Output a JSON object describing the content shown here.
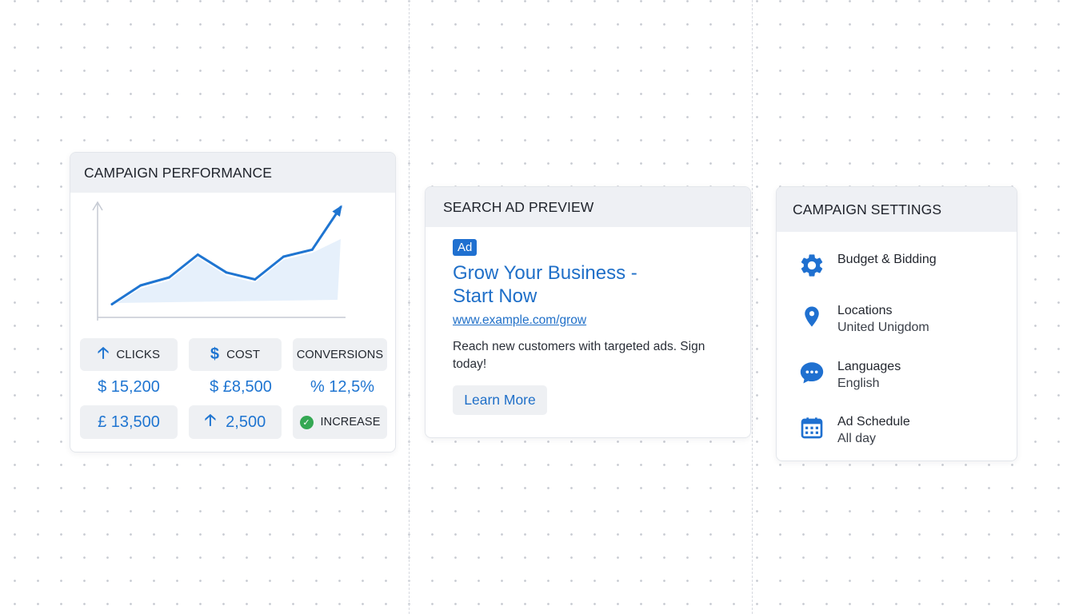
{
  "performance": {
    "title": "CAMPAIGN PERFORMANCE",
    "metrics": {
      "clicks_label": "CLICKS",
      "cost_label": "COST",
      "conversions_label": "CONVERSIONS",
      "clicks_value": "$ 15,200",
      "cost_value": "$ £8,500",
      "conversions_value": "% 12,5%",
      "row3_value_1": "£ 13,500",
      "row3_value_2": "2,500",
      "increase_label": "INCREASE"
    },
    "icons": {
      "clicks": "arrow-up-icon",
      "cost": "dollar-icon",
      "row3_value_2": "arrow-up-icon",
      "increase": "check-circle-icon"
    }
  },
  "chart_data": {
    "type": "line",
    "x": [
      0,
      1,
      2,
      3,
      4,
      5,
      6,
      7,
      8
    ],
    "values": [
      2,
      21,
      29,
      52,
      34,
      27,
      50,
      57,
      100
    ],
    "ylim": [
      0,
      100
    ],
    "xlabel": "",
    "ylabel": "",
    "grid": false,
    "area_fill": true,
    "end_arrow": true,
    "series_color": "#1f75d1"
  },
  "ad_preview": {
    "title": "SEARCH AD PREVIEW",
    "badge": "Ad",
    "headline_line1": "Grow Your Business -",
    "headline_line2": "Start Now",
    "url": "www.example.com/grow",
    "description": "Reach new customers with targeted ads. Sign today!",
    "cta": "Learn More"
  },
  "settings": {
    "title": "CAMPAIGN SETTINGS",
    "items": [
      {
        "icon": "gear-icon",
        "title": "Budget & Bidding",
        "subtitle": ""
      },
      {
        "icon": "location-pin-icon",
        "title": "Locations",
        "subtitle": "United Unigdom"
      },
      {
        "icon": "chat-bubble-icon",
        "title": "Languages",
        "subtitle": "English"
      },
      {
        "icon": "calendar-icon",
        "title": "Ad Schedule",
        "subtitle": "All day"
      }
    ]
  },
  "colors": {
    "accent": "#1f75d1",
    "header_bg": "#eef0f4",
    "tile_bg": "#eef0f3",
    "success": "#34a853"
  }
}
